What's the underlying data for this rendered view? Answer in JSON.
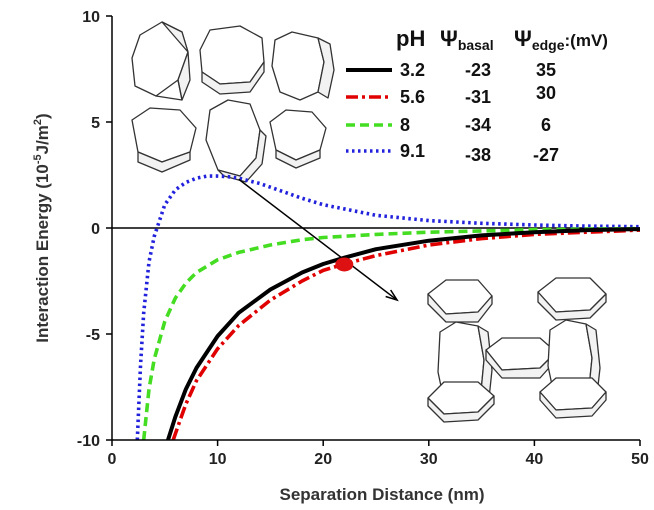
{
  "chart_data": {
    "type": "line",
    "xlabel": "Separation Distance (nm)",
    "ylabel_main": "Interaction Energy (10",
    "ylabel_exp": "-5",
    "ylabel_unit": "J/m",
    "ylabel_sq": "2",
    "ylabel_end": ")",
    "xlim": [
      0,
      50
    ],
    "ylim": [
      -10,
      10
    ],
    "x_ticks": [
      "0",
      "10",
      "20",
      "30",
      "40",
      "50"
    ],
    "y_ticks": [
      "10",
      "5",
      "0",
      "-5",
      "-10"
    ],
    "grid": false,
    "legend": {
      "position": "top-right",
      "header": {
        "ph": "pH",
        "psi1": "Ψ",
        "psi1_sub": "basal",
        "psi2": "Ψ",
        "psi2_sub": "edge",
        "unit": ":(mV)"
      }
    },
    "series": [
      {
        "name": "3.2",
        "basal": "-23",
        "edge": "35",
        "color": "#000000",
        "style": "solid",
        "x": [
          5.3,
          6,
          7,
          8,
          10,
          12,
          15,
          18,
          20,
          22,
          25,
          30,
          35,
          40,
          45,
          50
        ],
        "y": [
          -10,
          -8.9,
          -7.6,
          -6.6,
          -5.1,
          -4.0,
          -2.9,
          -2.1,
          -1.7,
          -1.4,
          -1.0,
          -0.6,
          -0.35,
          -0.2,
          -0.1,
          -0.05
        ]
      },
      {
        "name": "5.6",
        "basal": "-31",
        "edge": "30",
        "color": "#e00000",
        "style": "dashdot",
        "x": [
          5.8,
          6.5,
          7,
          8,
          10,
          12,
          15,
          18,
          20,
          22,
          25,
          30,
          35,
          40,
          45,
          50
        ],
        "y": [
          -10,
          -9.0,
          -8.3,
          -7.2,
          -5.7,
          -4.6,
          -3.4,
          -2.5,
          -2.0,
          -1.7,
          -1.3,
          -0.8,
          -0.5,
          -0.3,
          -0.2,
          -0.1
        ]
      },
      {
        "name": "8",
        "basal": "-34",
        "edge": "6",
        "color": "#44dd22",
        "style": "dashed",
        "x": [
          3.0,
          3.5,
          4,
          5,
          6,
          7,
          8,
          10,
          12,
          15,
          18,
          20,
          25,
          30,
          40,
          50
        ],
        "y": [
          -10,
          -7.6,
          -6.2,
          -4.4,
          -3.3,
          -2.6,
          -2.1,
          -1.5,
          -1.15,
          -0.8,
          -0.55,
          -0.45,
          -0.3,
          -0.2,
          -0.08,
          -0.03
        ]
      },
      {
        "name": "9.1",
        "basal": "-38",
        "edge": "-27",
        "color": "#2222dd",
        "style": "dotted",
        "x": [
          2.4,
          2.7,
          3,
          3.5,
          4,
          5,
          6,
          7,
          8,
          9,
          10,
          11,
          12,
          14,
          16,
          18,
          20,
          25,
          30,
          35,
          40,
          45,
          50
        ],
        "y": [
          -10,
          -6.5,
          -4.0,
          -1.6,
          -0.4,
          1.1,
          1.8,
          2.15,
          2.35,
          2.45,
          2.45,
          2.42,
          2.35,
          2.1,
          1.75,
          1.4,
          1.1,
          0.6,
          0.35,
          0.22,
          0.14,
          0.09,
          0.06
        ]
      }
    ],
    "arrow": {
      "x1": 12,
      "y1": 2.3,
      "x2": 27,
      "y2": -3.4
    },
    "marker": {
      "x": 22,
      "y": -1.72,
      "color": "#dd1111"
    },
    "zero_line": 0
  }
}
